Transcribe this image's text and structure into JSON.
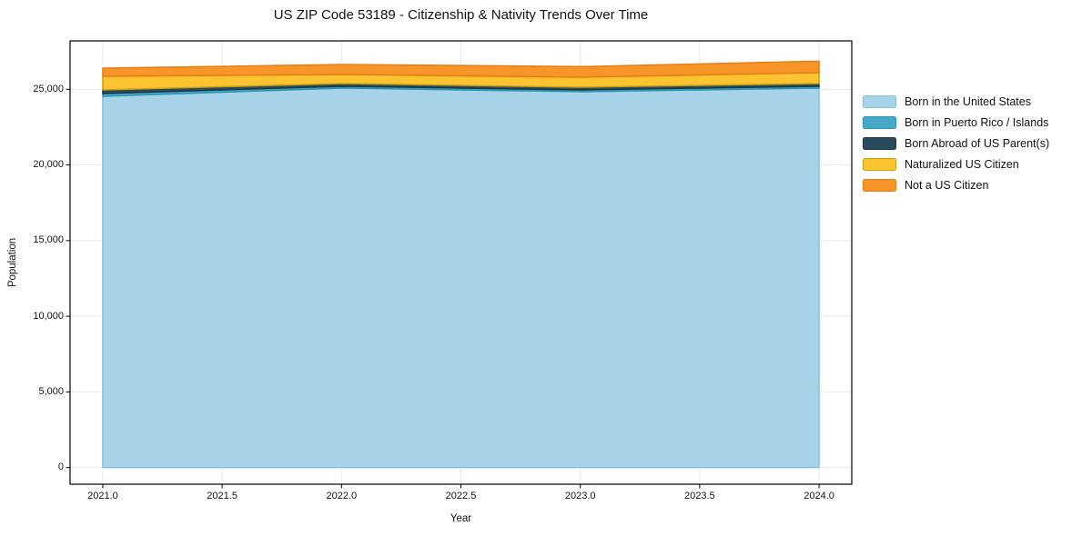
{
  "chart_data": {
    "type": "area",
    "stacked": true,
    "title": "US ZIP Code 53189 - Citizenship & Nativity Trends Over Time",
    "xlabel": "Year",
    "ylabel": "Population",
    "x": [
      2021,
      2022,
      2023,
      2024
    ],
    "series": [
      {
        "name": "Born in the United States",
        "color": "#a7d3e8",
        "edge": "#89c1dc",
        "values": [
          24540,
          25080,
          24840,
          25080
        ]
      },
      {
        "name": "Born in Puerto Rico / Islands",
        "color": "#47a8c5",
        "edge": "#2d94b4",
        "values": [
          180,
          120,
          120,
          120
        ]
      },
      {
        "name": "Born Abroad of US Parent(s)",
        "color": "#2a4b5e",
        "edge": "#1c3848",
        "values": [
          240,
          180,
          180,
          180
        ]
      },
      {
        "name": "Naturalized US Citizen",
        "color": "#fdc330",
        "edge": "#c7a012",
        "values": [
          900,
          600,
          660,
          720
        ]
      },
      {
        "name": "Not a US Citizen",
        "color": "#f79528",
        "edge": "#e67e17",
        "values": [
          540,
          660,
          700,
          760
        ]
      }
    ],
    "totals": [
      26400,
      26640,
      26500,
      26860
    ],
    "xlim": [
      2020.863,
      2024.137
    ],
    "ylim": [
      -1100,
      28200
    ],
    "xticks": [
      {
        "v": 2021,
        "label": "2021.0"
      },
      {
        "v": 2021.5,
        "label": "2021.5"
      },
      {
        "v": 2022,
        "label": "2022.0"
      },
      {
        "v": 2022.5,
        "label": "2022.5"
      },
      {
        "v": 2023,
        "label": "2023.0"
      },
      {
        "v": 2023.5,
        "label": "2023.5"
      },
      {
        "v": 2024,
        "label": "2024.0"
      }
    ],
    "yticks": [
      {
        "v": 0,
        "label": "0"
      },
      {
        "v": 5000,
        "label": "5,000"
      },
      {
        "v": 10000,
        "label": "10,000"
      },
      {
        "v": 15000,
        "label": "15,000"
      },
      {
        "v": 20000,
        "label": "20,000"
      },
      {
        "v": 25000,
        "label": "25,000"
      }
    ],
    "grid": true,
    "grid_color": "#e9e9e9",
    "spine_color": "#000000",
    "background": "#ffffff",
    "legend_position": "outside-right-top"
  }
}
